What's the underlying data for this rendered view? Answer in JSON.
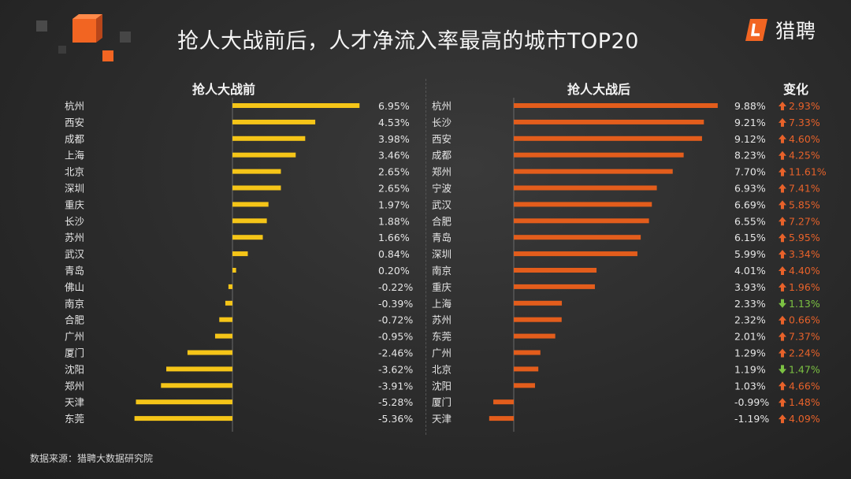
{
  "title": "抢人大战前后，人才净流入率最高的城市TOP20",
  "logo": {
    "text": "猎聘"
  },
  "footer": "数据来源：猎聘大数据研究院",
  "colors": {
    "before": "#f5c518",
    "after": "#e35d1c",
    "up": "#e8622a",
    "down": "#7cc243"
  },
  "chart_data": [
    {
      "type": "bar",
      "orientation": "horizontal",
      "title": "抢人大战前",
      "categories": [
        "杭州",
        "西安",
        "成都",
        "上海",
        "北京",
        "深圳",
        "重庆",
        "长沙",
        "苏州",
        "武汉",
        "青岛",
        "佛山",
        "南京",
        "合肥",
        "广州",
        "厦门",
        "沈阳",
        "郑州",
        "天津",
        "东莞"
      ],
      "values": [
        6.95,
        4.53,
        3.98,
        3.46,
        2.65,
        2.65,
        1.97,
        1.88,
        1.66,
        0.84,
        0.2,
        -0.22,
        -0.39,
        -0.72,
        -0.95,
        -2.46,
        -3.62,
        -3.91,
        -5.28,
        -5.36
      ],
      "labels": [
        "6.95%",
        "4.53%",
        "3.98%",
        "3.46%",
        "2.65%",
        "2.65%",
        "1.97%",
        "1.88%",
        "1.66%",
        "0.84%",
        "0.20%",
        "-0.22%",
        "-0.39%",
        "-0.72%",
        "-0.95%",
        "-2.46%",
        "-3.62%",
        "-3.91%",
        "-5.28%",
        "-5.36%"
      ]
    },
    {
      "type": "bar",
      "orientation": "horizontal",
      "title": "抢人大战后",
      "categories": [
        "杭州",
        "长沙",
        "西安",
        "成都",
        "郑州",
        "宁波",
        "武汉",
        "合肥",
        "青岛",
        "深圳",
        "南京",
        "重庆",
        "上海",
        "苏州",
        "东莞",
        "广州",
        "北京",
        "沈阳",
        "厦门",
        "天津"
      ],
      "values": [
        9.88,
        9.21,
        9.12,
        8.23,
        7.7,
        6.93,
        6.69,
        6.55,
        6.15,
        5.99,
        4.01,
        3.93,
        2.33,
        2.32,
        2.01,
        1.29,
        1.19,
        1.03,
        -0.99,
        -1.19
      ],
      "labels": [
        "9.88%",
        "9.21%",
        "9.12%",
        "8.23%",
        "7.70%",
        "6.93%",
        "6.69%",
        "6.55%",
        "6.15%",
        "5.99%",
        "4.01%",
        "3.93%",
        "2.33%",
        "2.32%",
        "2.01%",
        "1.29%",
        "1.19%",
        "1.03%",
        "-0.99%",
        "-1.19%"
      ],
      "change_title": "变化",
      "change": [
        {
          "dir": "up",
          "label": "2.93%"
        },
        {
          "dir": "up",
          "label": "7.33%"
        },
        {
          "dir": "up",
          "label": "4.60%"
        },
        {
          "dir": "up",
          "label": "4.25%"
        },
        {
          "dir": "up",
          "label": "11.61%"
        },
        {
          "dir": "up",
          "label": "7.41%"
        },
        {
          "dir": "up",
          "label": "5.85%"
        },
        {
          "dir": "up",
          "label": "7.27%"
        },
        {
          "dir": "up",
          "label": "5.95%"
        },
        {
          "dir": "up",
          "label": "3.34%"
        },
        {
          "dir": "up",
          "label": "4.40%"
        },
        {
          "dir": "up",
          "label": "1.96%"
        },
        {
          "dir": "down",
          "label": "1.13%"
        },
        {
          "dir": "up",
          "label": "0.66%"
        },
        {
          "dir": "up",
          "label": "7.37%"
        },
        {
          "dir": "up",
          "label": "2.24%"
        },
        {
          "dir": "down",
          "label": "1.47%"
        },
        {
          "dir": "up",
          "label": "4.66%"
        },
        {
          "dir": "up",
          "label": "1.48%"
        },
        {
          "dir": "up",
          "label": "4.09%"
        }
      ]
    }
  ]
}
